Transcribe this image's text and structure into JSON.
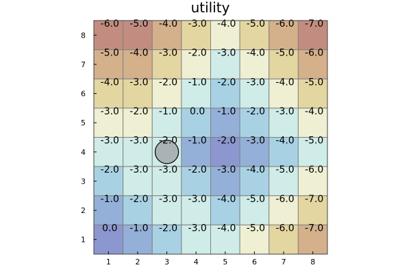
{
  "chart_data": {
    "type": "heatmap",
    "title": "utility",
    "xlabel": "",
    "ylabel": "",
    "x": [
      1,
      2,
      3,
      4,
      5,
      6,
      7,
      8
    ],
    "y": [
      1,
      2,
      3,
      4,
      5,
      6,
      7,
      8
    ],
    "xlim": [
      0.5,
      8.5
    ],
    "ylim": [
      0.5,
      8.5
    ],
    "grid": true,
    "values_by_row": [
      {
        "y": 8,
        "values": [
          -6.0,
          -5.0,
          -4.0,
          -3.0,
          -4.0,
          -5.0,
          -6.0,
          -7.0
        ]
      },
      {
        "y": 7,
        "values": [
          -5.0,
          -4.0,
          -3.0,
          -2.0,
          -3.0,
          -4.0,
          -5.0,
          -6.0
        ]
      },
      {
        "y": 6,
        "values": [
          -4.0,
          -3.0,
          -2.0,
          -1.0,
          -2.0,
          -3.0,
          -4.0,
          -5.0
        ]
      },
      {
        "y": 5,
        "values": [
          -3.0,
          -2.0,
          -1.0,
          0.0,
          -1.0,
          -2.0,
          -3.0,
          -4.0
        ]
      },
      {
        "y": 4,
        "values": [
          -3.0,
          -3.0,
          -2.0,
          -1.0,
          -2.0,
          -3.0,
          -4.0,
          -5.0
        ]
      },
      {
        "y": 3,
        "values": [
          -2.0,
          -3.0,
          -3.0,
          -2.0,
          -3.0,
          -4.0,
          -5.0,
          -6.0
        ]
      },
      {
        "y": 2,
        "values": [
          -1.0,
          -2.0,
          -3.0,
          -3.0,
          -4.0,
          -5.0,
          -6.0,
          -7.0
        ]
      },
      {
        "y": 1,
        "values": [
          0.0,
          -1.0,
          -2.0,
          -3.0,
          -4.0,
          -5.0,
          -6.0,
          -7.0
        ]
      }
    ],
    "cell_colors_by_row": [
      {
        "y": 8,
        "colors": [
          "#c28d80",
          "#c28d80",
          "#d4b08b",
          "#e4d6a1",
          "#efefd3",
          "#e4d6a1",
          "#d4b08b",
          "#c28d80"
        ]
      },
      {
        "y": 7,
        "colors": [
          "#d4b08b",
          "#d4b08b",
          "#e4d6a1",
          "#efefd3",
          "#cfece8",
          "#efefd3",
          "#e4d6a1",
          "#d4b08b"
        ]
      },
      {
        "y": 6,
        "colors": [
          "#e4d6a1",
          "#e4d6a1",
          "#efefd3",
          "#cfece8",
          "#a8d2e4",
          "#cfece8",
          "#efefd3",
          "#e4d6a1"
        ]
      },
      {
        "y": 5,
        "colors": [
          "#efefd3",
          "#efefd3",
          "#cfece8",
          "#a8d2e4",
          "#94b0d8",
          "#a8d2e4",
          "#cfece8",
          "#efefd3"
        ]
      },
      {
        "y": 4,
        "colors": [
          "#cfece8",
          "#cfece8",
          "#cfece8",
          "#94b0d8",
          "#8c97d0",
          "#94b0d8",
          "#a8d2e4",
          "#cfece8"
        ]
      },
      {
        "y": 3,
        "colors": [
          "#a8d2e4",
          "#cfece8",
          "#cfece8",
          "#a8d2e4",
          "#94b0d8",
          "#a8d2e4",
          "#cfece8",
          "#efefd3"
        ]
      },
      {
        "y": 2,
        "colors": [
          "#94b0d8",
          "#a8d2e4",
          "#cfece8",
          "#cfece8",
          "#a8d2e4",
          "#cfece8",
          "#efefd3",
          "#e4d6a1"
        ]
      },
      {
        "y": 1,
        "colors": [
          "#8c97d0",
          "#94b0d8",
          "#a8d2e4",
          "#cfece8",
          "#cfece8",
          "#efefd3",
          "#e4d6a1",
          "#d4b08b"
        ]
      }
    ],
    "marker": {
      "shape": "circle",
      "x": 3,
      "y": 4,
      "fill": "#a9b3b5",
      "stroke": "#000000"
    },
    "grid_line_color": "#808080"
  }
}
